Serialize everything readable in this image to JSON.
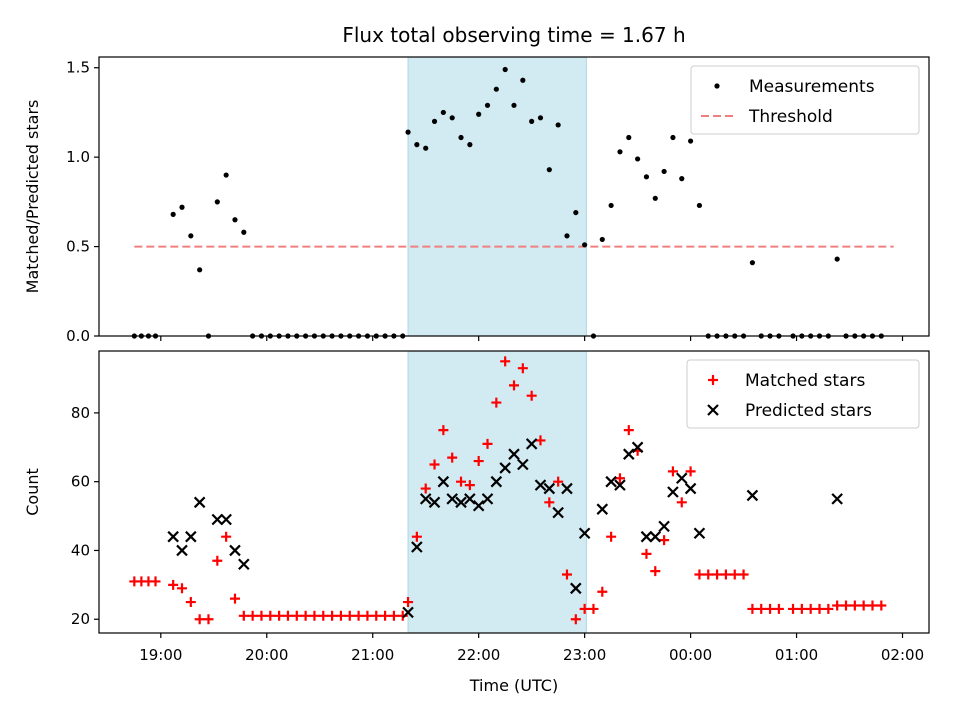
{
  "chart_data": {
    "type": "scatter",
    "title": "Flux total observing time = 1.67 h",
    "xlabel": "Time (UTC)",
    "x_range": [
      "18:25",
      "02:15"
    ],
    "x_ticks": [
      {
        "t": "19:00",
        "label": "19:00"
      },
      {
        "t": "20:00",
        "label": "20:00"
      },
      {
        "t": "21:00",
        "label": "21:00"
      },
      {
        "t": "22:00",
        "label": "22:00"
      },
      {
        "t": "23:00",
        "label": "23:00"
      },
      {
        "t": "00:00",
        "label": "00:00"
      },
      {
        "t": "01:00",
        "label": "01:00"
      },
      {
        "t": "02:00",
        "label": "02:00"
      }
    ],
    "shaded_interval": {
      "start": "21:20",
      "end": "23:01",
      "color": "#add8e6"
    },
    "panels": [
      {
        "ylabel": "Matched/Predicted stars",
        "ylim": [
          0,
          1.56
        ],
        "y_ticks": [
          {
            "v": 0.0,
            "label": "0.0"
          },
          {
            "v": 0.5,
            "label": "0.5"
          },
          {
            "v": 1.0,
            "label": "1.0"
          },
          {
            "v": 1.5,
            "label": "1.5"
          }
        ],
        "legend": {
          "position": "top-right",
          "entries": [
            "Measurements",
            "Threshold"
          ]
        },
        "threshold": {
          "name": "Threshold",
          "value": 0.5,
          "x_start": "18:45",
          "x_end": "01:55",
          "color": "#f08080"
        },
        "series": [
          {
            "name": "Measurements",
            "marker": "dot",
            "color": "#000000",
            "points": [
              [
                "18:45",
                0.0
              ],
              [
                "18:49",
                0.0
              ],
              [
                "18:53",
                0.0
              ],
              [
                "18:57",
                0.0
              ],
              [
                "19:07",
                0.68
              ],
              [
                "19:12",
                0.72
              ],
              [
                "19:17",
                0.56
              ],
              [
                "19:22",
                0.37
              ],
              [
                "19:27",
                0.0
              ],
              [
                "19:32",
                0.75
              ],
              [
                "19:37",
                0.9
              ],
              [
                "19:42",
                0.65
              ],
              [
                "19:47",
                0.58
              ],
              [
                "19:52",
                0.0
              ],
              [
                "19:57",
                0.0
              ],
              [
                "20:02",
                0.0
              ],
              [
                "20:07",
                0.0
              ],
              [
                "20:12",
                0.0
              ],
              [
                "20:17",
                0.0
              ],
              [
                "20:22",
                0.0
              ],
              [
                "20:27",
                0.0
              ],
              [
                "20:32",
                0.0
              ],
              [
                "20:37",
                0.0
              ],
              [
                "20:42",
                0.0
              ],
              [
                "20:47",
                0.0
              ],
              [
                "20:52",
                0.0
              ],
              [
                "20:57",
                0.0
              ],
              [
                "21:02",
                0.0
              ],
              [
                "21:07",
                0.0
              ],
              [
                "21:12",
                0.0
              ],
              [
                "21:17",
                0.0
              ],
              [
                "21:20",
                1.14
              ],
              [
                "21:25",
                1.07
              ],
              [
                "21:30",
                1.05
              ],
              [
                "21:35",
                1.2
              ],
              [
                "21:40",
                1.25
              ],
              [
                "21:45",
                1.22
              ],
              [
                "21:50",
                1.11
              ],
              [
                "21:55",
                1.07
              ],
              [
                "22:00",
                1.24
              ],
              [
                "22:05",
                1.29
              ],
              [
                "22:10",
                1.38
              ],
              [
                "22:15",
                1.49
              ],
              [
                "22:20",
                1.29
              ],
              [
                "22:25",
                1.43
              ],
              [
                "22:30",
                1.2
              ],
              [
                "22:35",
                1.22
              ],
              [
                "22:40",
                0.93
              ],
              [
                "22:45",
                1.18
              ],
              [
                "22:50",
                0.56
              ],
              [
                "22:55",
                0.69
              ],
              [
                "23:00",
                0.51
              ],
              [
                "23:05",
                0.0
              ],
              [
                "23:10",
                0.54
              ],
              [
                "23:15",
                0.73
              ],
              [
                "23:20",
                1.03
              ],
              [
                "23:25",
                1.11
              ],
              [
                "23:30",
                0.99
              ],
              [
                "23:35",
                0.89
              ],
              [
                "23:40",
                0.77
              ],
              [
                "23:45",
                0.92
              ],
              [
                "23:50",
                1.11
              ],
              [
                "23:55",
                0.88
              ],
              [
                "00:00",
                1.09
              ],
              [
                "00:05",
                0.73
              ],
              [
                "00:10",
                0.0
              ],
              [
                "00:15",
                0.0
              ],
              [
                "00:20",
                0.0
              ],
              [
                "00:25",
                0.0
              ],
              [
                "00:30",
                0.0
              ],
              [
                "00:35",
                0.41
              ],
              [
                "00:40",
                0.0
              ],
              [
                "00:45",
                0.0
              ],
              [
                "00:50",
                0.0
              ],
              [
                "00:58",
                0.0
              ],
              [
                "01:03",
                0.0
              ],
              [
                "01:08",
                0.0
              ],
              [
                "01:13",
                0.0
              ],
              [
                "01:18",
                0.0
              ],
              [
                "01:23",
                0.43
              ],
              [
                "01:28",
                0.0
              ],
              [
                "01:33",
                0.0
              ],
              [
                "01:38",
                0.0
              ],
              [
                "01:43",
                0.0
              ],
              [
                "01:48",
                0.0
              ]
            ]
          }
        ]
      },
      {
        "ylabel": "Count",
        "ylim": [
          16,
          98
        ],
        "y_ticks": [
          {
            "v": 20,
            "label": "20"
          },
          {
            "v": 40,
            "label": "40"
          },
          {
            "v": 60,
            "label": "60"
          },
          {
            "v": 80,
            "label": "80"
          }
        ],
        "legend": {
          "position": "top-right",
          "entries": [
            "Matched stars",
            "Predicted stars"
          ]
        },
        "series": [
          {
            "name": "Matched stars",
            "marker": "plus",
            "color": "#ff0000",
            "points": [
              [
                "18:45",
                31
              ],
              [
                "18:49",
                31
              ],
              [
                "18:53",
                31
              ],
              [
                "18:57",
                31
              ],
              [
                "19:07",
                30
              ],
              [
                "19:12",
                29
              ],
              [
                "19:17",
                25
              ],
              [
                "19:22",
                20
              ],
              [
                "19:27",
                20
              ],
              [
                "19:32",
                37
              ],
              [
                "19:37",
                44
              ],
              [
                "19:42",
                26
              ],
              [
                "19:47",
                21
              ],
              [
                "19:52",
                21
              ],
              [
                "19:57",
                21
              ],
              [
                "20:02",
                21
              ],
              [
                "20:07",
                21
              ],
              [
                "20:12",
                21
              ],
              [
                "20:17",
                21
              ],
              [
                "20:22",
                21
              ],
              [
                "20:27",
                21
              ],
              [
                "20:32",
                21
              ],
              [
                "20:37",
                21
              ],
              [
                "20:42",
                21
              ],
              [
                "20:47",
                21
              ],
              [
                "20:52",
                21
              ],
              [
                "20:57",
                21
              ],
              [
                "21:02",
                21
              ],
              [
                "21:07",
                21
              ],
              [
                "21:12",
                21
              ],
              [
                "21:17",
                21
              ],
              [
                "21:20",
                25
              ],
              [
                "21:25",
                44
              ],
              [
                "21:30",
                58
              ],
              [
                "21:35",
                65
              ],
              [
                "21:40",
                75
              ],
              [
                "21:45",
                67
              ],
              [
                "21:50",
                60
              ],
              [
                "21:55",
                59
              ],
              [
                "22:00",
                66
              ],
              [
                "22:05",
                71
              ],
              [
                "22:10",
                83
              ],
              [
                "22:15",
                95
              ],
              [
                "22:20",
                88
              ],
              [
                "22:25",
                93
              ],
              [
                "22:30",
                85
              ],
              [
                "22:35",
                72
              ],
              [
                "22:40",
                54
              ],
              [
                "22:45",
                60
              ],
              [
                "22:50",
                33
              ],
              [
                "22:55",
                20
              ],
              [
                "23:00",
                23
              ],
              [
                "23:05",
                23
              ],
              [
                "23:10",
                28
              ],
              [
                "23:15",
                44
              ],
              [
                "23:20",
                61
              ],
              [
                "23:25",
                75
              ],
              [
                "23:30",
                69
              ],
              [
                "23:35",
                39
              ],
              [
                "23:40",
                34
              ],
              [
                "23:45",
                43
              ],
              [
                "23:50",
                63
              ],
              [
                "23:55",
                54
              ],
              [
                "00:00",
                63
              ],
              [
                "00:05",
                33
              ],
              [
                "00:10",
                33
              ],
              [
                "00:15",
                33
              ],
              [
                "00:20",
                33
              ],
              [
                "00:25",
                33
              ],
              [
                "00:30",
                33
              ],
              [
                "00:35",
                23
              ],
              [
                "00:40",
                23
              ],
              [
                "00:45",
                23
              ],
              [
                "00:50",
                23
              ],
              [
                "00:58",
                23
              ],
              [
                "01:03",
                23
              ],
              [
                "01:08",
                23
              ],
              [
                "01:13",
                23
              ],
              [
                "01:18",
                23
              ],
              [
                "01:23",
                24
              ],
              [
                "01:28",
                24
              ],
              [
                "01:33",
                24
              ],
              [
                "01:38",
                24
              ],
              [
                "01:43",
                24
              ],
              [
                "01:48",
                24
              ]
            ]
          },
          {
            "name": "Predicted stars",
            "marker": "x",
            "color": "#000000",
            "points": [
              [
                "19:07",
                44
              ],
              [
                "19:12",
                40
              ],
              [
                "19:17",
                44
              ],
              [
                "19:22",
                54
              ],
              [
                "19:32",
                49
              ],
              [
                "19:37",
                49
              ],
              [
                "19:42",
                40
              ],
              [
                "19:47",
                36
              ],
              [
                "21:20",
                22
              ],
              [
                "21:25",
                41
              ],
              [
                "21:30",
                55
              ],
              [
                "21:35",
                54
              ],
              [
                "21:40",
                60
              ],
              [
                "21:45",
                55
              ],
              [
                "21:50",
                54
              ],
              [
                "21:55",
                55
              ],
              [
                "22:00",
                53
              ],
              [
                "22:05",
                55
              ],
              [
                "22:10",
                60
              ],
              [
                "22:15",
                64
              ],
              [
                "22:20",
                68
              ],
              [
                "22:25",
                65
              ],
              [
                "22:30",
                71
              ],
              [
                "22:35",
                59
              ],
              [
                "22:40",
                58
              ],
              [
                "22:45",
                51
              ],
              [
                "22:50",
                58
              ],
              [
                "22:55",
                29
              ],
              [
                "23:00",
                45
              ],
              [
                "23:10",
                52
              ],
              [
                "23:15",
                60
              ],
              [
                "23:20",
                59
              ],
              [
                "23:25",
                68
              ],
              [
                "23:30",
                70
              ],
              [
                "23:35",
                44
              ],
              [
                "23:40",
                44
              ],
              [
                "23:45",
                47
              ],
              [
                "23:50",
                57
              ],
              [
                "23:55",
                61
              ],
              [
                "00:00",
                58
              ],
              [
                "00:05",
                45
              ],
              [
                "00:35",
                56
              ],
              [
                "01:23",
                55
              ]
            ]
          }
        ]
      }
    ]
  }
}
